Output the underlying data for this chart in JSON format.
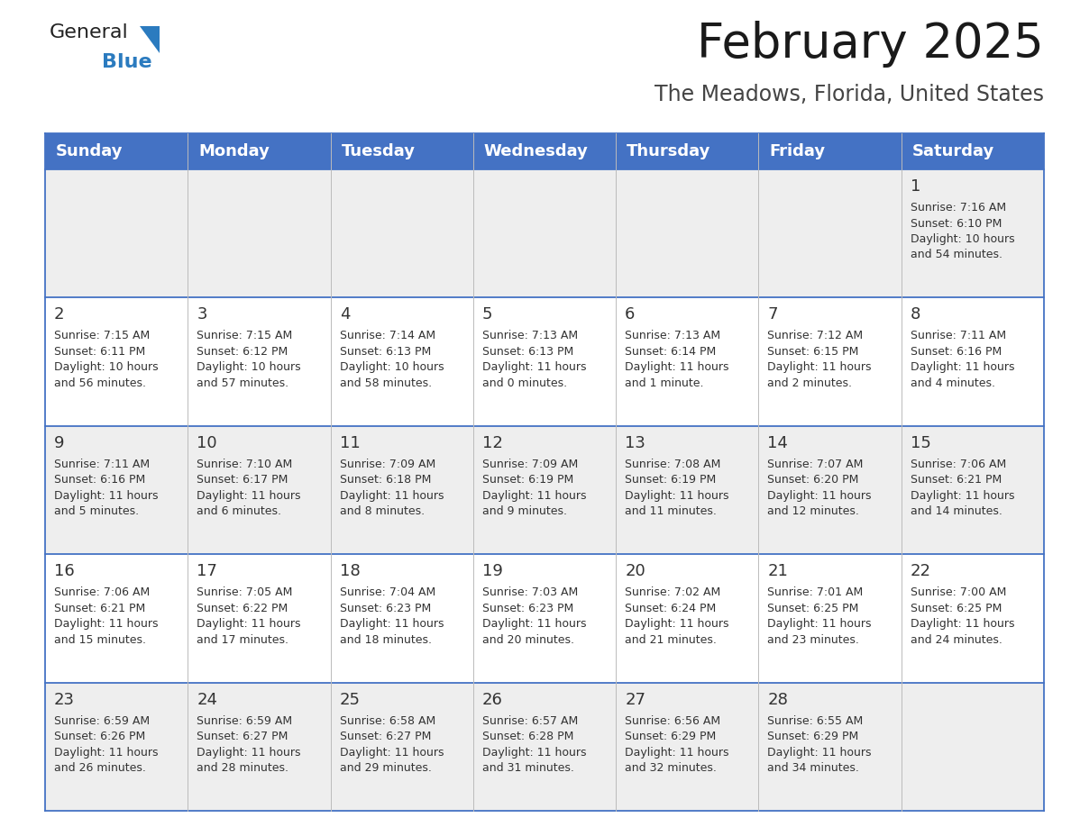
{
  "title": "February 2025",
  "subtitle": "The Meadows, Florida, United States",
  "header_bg": "#4472c4",
  "header_text_color": "#ffffff",
  "row_bg_odd": "#eeeeee",
  "row_bg_even": "#ffffff",
  "border_color": "#4472c4",
  "cell_border_color": "#4472c4",
  "day_headers": [
    "Sunday",
    "Monday",
    "Tuesday",
    "Wednesday",
    "Thursday",
    "Friday",
    "Saturday"
  ],
  "days": [
    {
      "day": 1,
      "col": 6,
      "row": 0,
      "sunrise": "7:16 AM",
      "sunset": "6:10 PM",
      "daylight": "10 hours and 54 minutes."
    },
    {
      "day": 2,
      "col": 0,
      "row": 1,
      "sunrise": "7:15 AM",
      "sunset": "6:11 PM",
      "daylight": "10 hours and 56 minutes."
    },
    {
      "day": 3,
      "col": 1,
      "row": 1,
      "sunrise": "7:15 AM",
      "sunset": "6:12 PM",
      "daylight": "10 hours and 57 minutes."
    },
    {
      "day": 4,
      "col": 2,
      "row": 1,
      "sunrise": "7:14 AM",
      "sunset": "6:13 PM",
      "daylight": "10 hours and 58 minutes."
    },
    {
      "day": 5,
      "col": 3,
      "row": 1,
      "sunrise": "7:13 AM",
      "sunset": "6:13 PM",
      "daylight": "11 hours and 0 minutes."
    },
    {
      "day": 6,
      "col": 4,
      "row": 1,
      "sunrise": "7:13 AM",
      "sunset": "6:14 PM",
      "daylight": "11 hours and 1 minute."
    },
    {
      "day": 7,
      "col": 5,
      "row": 1,
      "sunrise": "7:12 AM",
      "sunset": "6:15 PM",
      "daylight": "11 hours and 2 minutes."
    },
    {
      "day": 8,
      "col": 6,
      "row": 1,
      "sunrise": "7:11 AM",
      "sunset": "6:16 PM",
      "daylight": "11 hours and 4 minutes."
    },
    {
      "day": 9,
      "col": 0,
      "row": 2,
      "sunrise": "7:11 AM",
      "sunset": "6:16 PM",
      "daylight": "11 hours and 5 minutes."
    },
    {
      "day": 10,
      "col": 1,
      "row": 2,
      "sunrise": "7:10 AM",
      "sunset": "6:17 PM",
      "daylight": "11 hours and 6 minutes."
    },
    {
      "day": 11,
      "col": 2,
      "row": 2,
      "sunrise": "7:09 AM",
      "sunset": "6:18 PM",
      "daylight": "11 hours and 8 minutes."
    },
    {
      "day": 12,
      "col": 3,
      "row": 2,
      "sunrise": "7:09 AM",
      "sunset": "6:19 PM",
      "daylight": "11 hours and 9 minutes."
    },
    {
      "day": 13,
      "col": 4,
      "row": 2,
      "sunrise": "7:08 AM",
      "sunset": "6:19 PM",
      "daylight": "11 hours and 11 minutes."
    },
    {
      "day": 14,
      "col": 5,
      "row": 2,
      "sunrise": "7:07 AM",
      "sunset": "6:20 PM",
      "daylight": "11 hours and 12 minutes."
    },
    {
      "day": 15,
      "col": 6,
      "row": 2,
      "sunrise": "7:06 AM",
      "sunset": "6:21 PM",
      "daylight": "11 hours and 14 minutes."
    },
    {
      "day": 16,
      "col": 0,
      "row": 3,
      "sunrise": "7:06 AM",
      "sunset": "6:21 PM",
      "daylight": "11 hours and 15 minutes."
    },
    {
      "day": 17,
      "col": 1,
      "row": 3,
      "sunrise": "7:05 AM",
      "sunset": "6:22 PM",
      "daylight": "11 hours and 17 minutes."
    },
    {
      "day": 18,
      "col": 2,
      "row": 3,
      "sunrise": "7:04 AM",
      "sunset": "6:23 PM",
      "daylight": "11 hours and 18 minutes."
    },
    {
      "day": 19,
      "col": 3,
      "row": 3,
      "sunrise": "7:03 AM",
      "sunset": "6:23 PM",
      "daylight": "11 hours and 20 minutes."
    },
    {
      "day": 20,
      "col": 4,
      "row": 3,
      "sunrise": "7:02 AM",
      "sunset": "6:24 PM",
      "daylight": "11 hours and 21 minutes."
    },
    {
      "day": 21,
      "col": 5,
      "row": 3,
      "sunrise": "7:01 AM",
      "sunset": "6:25 PM",
      "daylight": "11 hours and 23 minutes."
    },
    {
      "day": 22,
      "col": 6,
      "row": 3,
      "sunrise": "7:00 AM",
      "sunset": "6:25 PM",
      "daylight": "11 hours and 24 minutes."
    },
    {
      "day": 23,
      "col": 0,
      "row": 4,
      "sunrise": "6:59 AM",
      "sunset": "6:26 PM",
      "daylight": "11 hours and 26 minutes."
    },
    {
      "day": 24,
      "col": 1,
      "row": 4,
      "sunrise": "6:59 AM",
      "sunset": "6:27 PM",
      "daylight": "11 hours and 28 minutes."
    },
    {
      "day": 25,
      "col": 2,
      "row": 4,
      "sunrise": "6:58 AM",
      "sunset": "6:27 PM",
      "daylight": "11 hours and 29 minutes."
    },
    {
      "day": 26,
      "col": 3,
      "row": 4,
      "sunrise": "6:57 AM",
      "sunset": "6:28 PM",
      "daylight": "11 hours and 31 minutes."
    },
    {
      "day": 27,
      "col": 4,
      "row": 4,
      "sunrise": "6:56 AM",
      "sunset": "6:29 PM",
      "daylight": "11 hours and 32 minutes."
    },
    {
      "day": 28,
      "col": 5,
      "row": 4,
      "sunrise": "6:55 AM",
      "sunset": "6:29 PM",
      "daylight": "11 hours and 34 minutes."
    }
  ],
  "num_rows": 5,
  "num_cols": 7,
  "logo_text_general": "General",
  "logo_text_blue": "Blue",
  "logo_color_general": "#222222",
  "logo_color_blue": "#2b7bbf",
  "title_color": "#1a1a1a",
  "subtitle_color": "#444444",
  "day_number_color": "#333333",
  "cell_text_color": "#333333",
  "title_fontsize": 38,
  "subtitle_fontsize": 17,
  "header_fontsize": 13,
  "day_num_fontsize": 13,
  "cell_text_fontsize": 9.0,
  "logo_general_fontsize": 16,
  "logo_blue_fontsize": 16
}
